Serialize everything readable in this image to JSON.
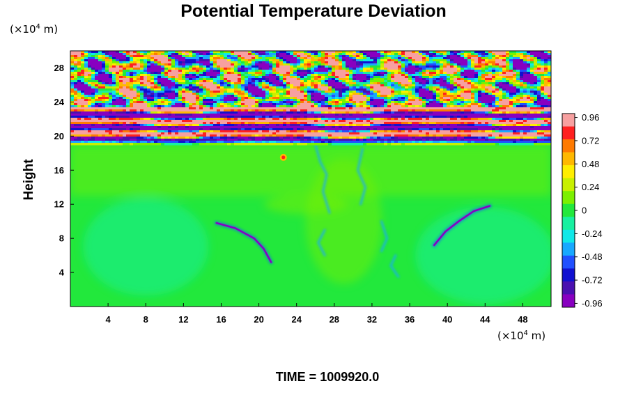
{
  "chart_data": {
    "type": "heatmap",
    "title": "Potential Temperature Deviation",
    "ylabel": "Height",
    "x_unit_prefix": "(×10",
    "x_unit_exp": "4",
    "x_unit_suffix": " m)",
    "y_unit_prefix": "(×10",
    "y_unit_exp": "4",
    "y_unit_suffix": " m)",
    "xlim": [
      0,
      51
    ],
    "ylim": [
      0,
      30
    ],
    "x_ticks": [
      4,
      8,
      12,
      16,
      20,
      24,
      28,
      32,
      36,
      40,
      44,
      48
    ],
    "y_ticks": [
      4,
      8,
      12,
      16,
      20,
      24,
      28
    ],
    "colorbar": {
      "min": -1.0,
      "max": 1.0,
      "labels": [
        "0.96",
        "0.72",
        "0.48",
        "0.24",
        "0",
        "-0.24",
        "-0.48",
        "-0.72",
        "-0.96"
      ],
      "label_values": [
        0.96,
        0.72,
        0.48,
        0.24,
        0,
        -0.24,
        -0.48,
        -0.72,
        -0.96
      ],
      "colors_top_to_bottom": [
        "#f7a0a0",
        "#ff2020",
        "#ff7a00",
        "#ffb800",
        "#ffee00",
        "#c8f000",
        "#7cf000",
        "#22e83c",
        "#18f0a0",
        "#10e8e8",
        "#18a8ff",
        "#2050ff",
        "#1010d0",
        "#4a10b0",
        "#8800c0"
      ]
    },
    "timestamp": "TIME = 1009920.0",
    "background_value": 0,
    "features": [
      {
        "kind": "stratospheric-wave-layers",
        "height_range": [
          19,
          30
        ]
      },
      {
        "kind": "left-blue-arc",
        "x_range": [
          15,
          22
        ],
        "height_range": [
          5,
          10
        ]
      },
      {
        "kind": "right-blue-arc",
        "x_range": [
          38,
          45
        ],
        "height_range": [
          7,
          12
        ]
      },
      {
        "kind": "central-plume",
        "x_range": [
          25,
          34
        ],
        "height_range": [
          3,
          19
        ]
      }
    ]
  }
}
